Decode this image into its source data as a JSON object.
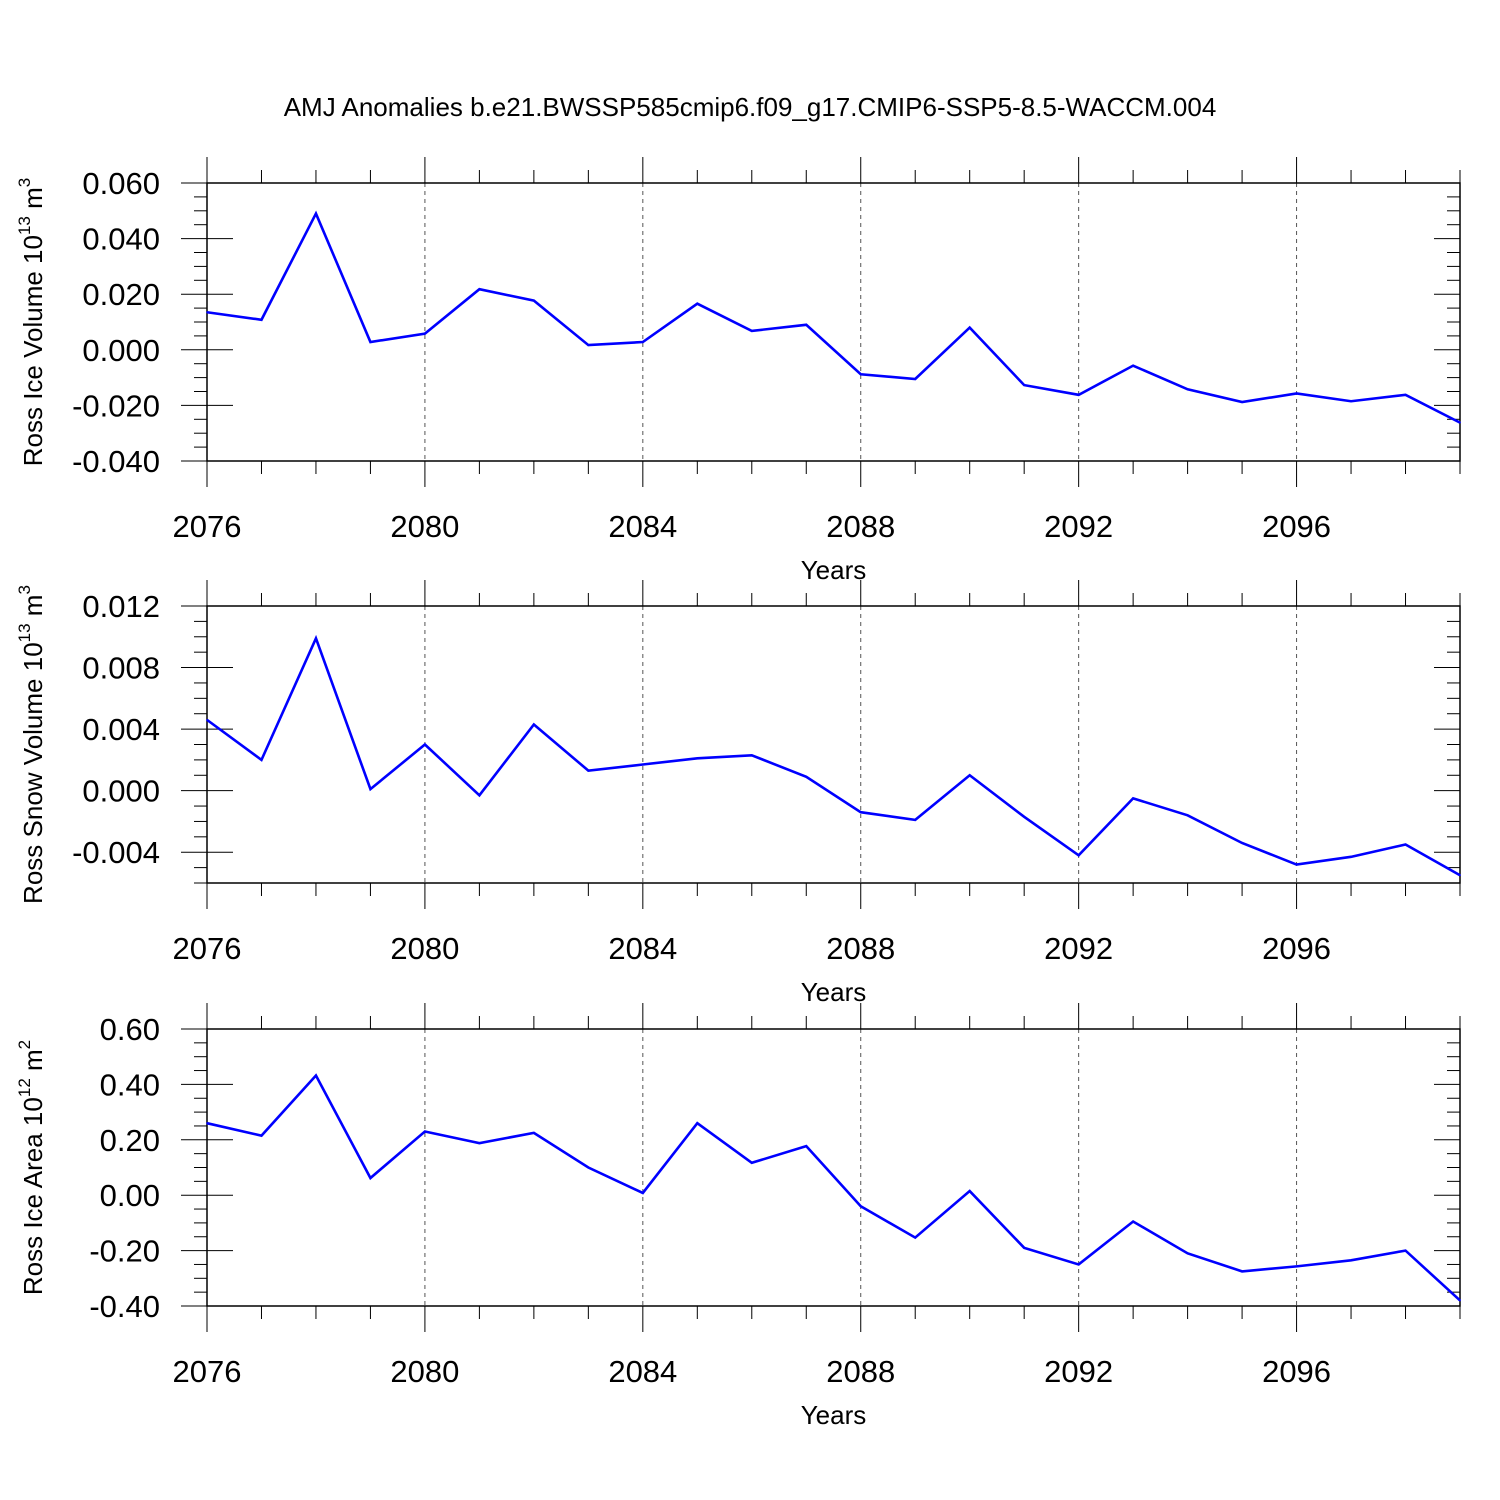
{
  "figure": {
    "title": "AMJ Anomalies b.e21.BWSSP585cmip6.f09_g17.CMIP6-SSP5-8.5-WACCM.004",
    "line_color": "#0000ff",
    "grid_style": "vertical dashed lines at major x ticks"
  },
  "chart_data": [
    {
      "type": "line",
      "title": "",
      "xlabel": "Years",
      "ylabel": "Ross Ice Volume 10",
      "ylabel_exponent": "13",
      "ylabel_unit": "m",
      "ylabel_unit_exponent": "3",
      "xlim": [
        2076,
        2099
      ],
      "ylim": [
        -0.04,
        0.06
      ],
      "x_ticks": [
        2076,
        2080,
        2084,
        2088,
        2092,
        2096
      ],
      "x_tick_labels": [
        "2076",
        "2080",
        "2084",
        "2088",
        "2092",
        "2096"
      ],
      "y_ticks": [
        -0.04,
        -0.02,
        0.0,
        0.02,
        0.04,
        0.06
      ],
      "y_tick_labels": [
        "-0.040",
        "-0.020",
        "0.000",
        "0.020",
        "0.040",
        "0.060"
      ],
      "x": [
        2076,
        2077,
        2078,
        2079,
        2080,
        2081,
        2082,
        2083,
        2084,
        2085,
        2086,
        2087,
        2088,
        2089,
        2090,
        2091,
        2092,
        2093,
        2094,
        2095,
        2096,
        2097,
        2098,
        2099
      ],
      "series": [
        {
          "values": [
            0.0135,
            0.0108,
            0.049,
            0.0028,
            0.0058,
            0.0218,
            0.0177,
            0.0017,
            0.0028,
            0.0166,
            0.0068,
            0.009,
            -0.0088,
            -0.0105,
            0.008,
            -0.0127,
            -0.0162,
            -0.0057,
            -0.0142,
            -0.0188,
            -0.0157,
            -0.0185,
            -0.0162,
            -0.0262
          ]
        }
      ]
    },
    {
      "type": "line",
      "title": "",
      "xlabel": "Years",
      "ylabel": "Ross Snow Volume 10",
      "ylabel_exponent": "13",
      "ylabel_unit": "m",
      "ylabel_unit_exponent": "3",
      "xlim": [
        2076,
        2099
      ],
      "ylim": [
        -0.006,
        0.012
      ],
      "x_ticks": [
        2076,
        2080,
        2084,
        2088,
        2092,
        2096
      ],
      "x_tick_labels": [
        "2076",
        "2080",
        "2084",
        "2088",
        "2092",
        "2096"
      ],
      "y_ticks": [
        -0.004,
        0.0,
        0.004,
        0.008,
        0.012
      ],
      "y_tick_labels": [
        "-0.004",
        "0.000",
        "0.004",
        "0.008",
        "0.012"
      ],
      "x": [
        2076,
        2077,
        2078,
        2079,
        2080,
        2081,
        2082,
        2083,
        2084,
        2085,
        2086,
        2087,
        2088,
        2089,
        2090,
        2091,
        2092,
        2093,
        2094,
        2095,
        2096,
        2097,
        2098,
        2099
      ],
      "series": [
        {
          "values": [
            0.0046,
            0.002,
            0.0099,
            0.0001,
            0.003,
            -0.0003,
            0.0043,
            0.0013,
            0.0017,
            0.0021,
            0.0023,
            0.0009,
            -0.0014,
            -0.0019,
            0.001,
            -0.0017,
            -0.0042,
            -0.0005,
            -0.0016,
            -0.0034,
            -0.0048,
            -0.0043,
            -0.0035,
            -0.0055
          ]
        }
      ]
    },
    {
      "type": "line",
      "title": "",
      "xlabel": "Years",
      "ylabel": "Ross Ice Area 10",
      "ylabel_exponent": "12",
      "ylabel_unit": "m",
      "ylabel_unit_exponent": "2",
      "xlim": [
        2076,
        2099
      ],
      "ylim": [
        -0.4,
        0.6
      ],
      "x_ticks": [
        2076,
        2080,
        2084,
        2088,
        2092,
        2096
      ],
      "x_tick_labels": [
        "2076",
        "2080",
        "2084",
        "2088",
        "2092",
        "2096"
      ],
      "y_ticks": [
        -0.4,
        -0.2,
        0.0,
        0.2,
        0.4,
        0.6
      ],
      "y_tick_labels": [
        "-0.40",
        "-0.20",
        "0.00",
        "0.20",
        "0.40",
        "0.60"
      ],
      "x": [
        2076,
        2077,
        2078,
        2079,
        2080,
        2081,
        2082,
        2083,
        2084,
        2085,
        2086,
        2087,
        2088,
        2089,
        2090,
        2091,
        2092,
        2093,
        2094,
        2095,
        2096,
        2097,
        2098,
        2099
      ],
      "series": [
        {
          "values": [
            0.26,
            0.215,
            0.432,
            0.062,
            0.23,
            0.188,
            0.225,
            0.1,
            0.008,
            0.26,
            0.117,
            0.177,
            -0.04,
            -0.153,
            0.015,
            -0.19,
            -0.25,
            -0.095,
            -0.21,
            -0.275,
            -0.257,
            -0.235,
            -0.2,
            -0.38
          ]
        }
      ]
    }
  ]
}
